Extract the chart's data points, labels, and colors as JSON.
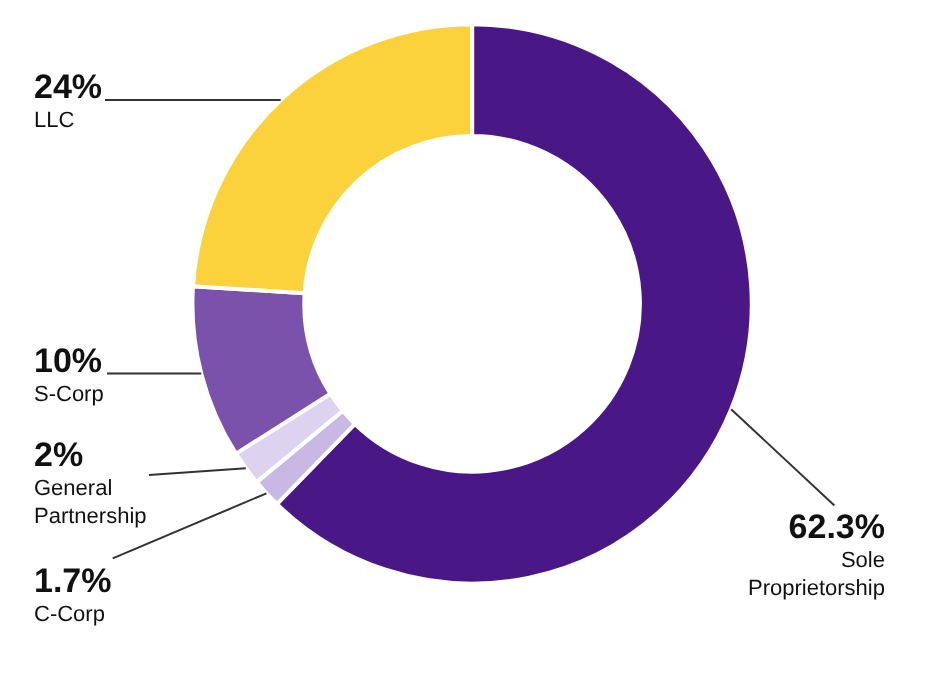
{
  "chart_data": {
    "type": "donut",
    "categories": [
      "Sole Proprietorship",
      "C-Corp",
      "General Partnership",
      "S-Corp",
      "LLC"
    ],
    "values": [
      62.3,
      1.7,
      2,
      10,
      24
    ],
    "colors": [
      "#4a1786",
      "#c9b8e3",
      "#ddd2ef",
      "#7a52ab",
      "#fcd23c"
    ],
    "value_labels": [
      "62.3%",
      "1.7%",
      "2%",
      "10%",
      "24%"
    ]
  }
}
